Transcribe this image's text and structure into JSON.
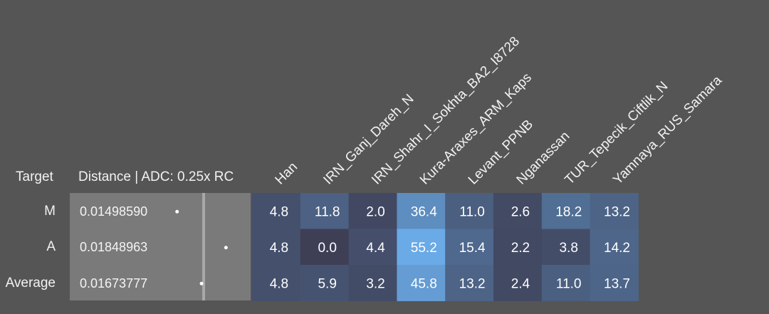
{
  "header": {
    "target_label": "Target",
    "distance_label": "Distance | ADC: 0.25x RC"
  },
  "colors": {
    "background": "#555555",
    "distance_bg": "#7a7a7a",
    "divider": "#a8a8a8",
    "dot": "#ffffff"
  },
  "rows": [
    {
      "name": "M",
      "distance": "0.01498590",
      "distance_value": 0.0149859
    },
    {
      "name": "A",
      "distance": "0.01848963",
      "distance_value": 0.01848963
    },
    {
      "name": "Average",
      "distance": "0.01673777",
      "distance_value": 0.01673777
    }
  ],
  "chart_data": {
    "type": "heatmap",
    "columns": [
      "Han",
      "IRN_Ganj_Dareh_N",
      "IRN_Shahr_I_Sokhta_BA2_I8728",
      "Kura-Araxes_ARM_Kaps",
      "Levant_PPNB",
      "Nganassan",
      "TUR_Tepecik_Ciftlik_N",
      "Yamnaya_RUS_Samara"
    ],
    "rows": [
      "M",
      "A",
      "Average"
    ],
    "values": [
      [
        4.8,
        11.8,
        2.0,
        36.4,
        11.0,
        2.6,
        18.2,
        13.2
      ],
      [
        4.8,
        0.0,
        4.4,
        55.2,
        15.4,
        2.2,
        3.8,
        14.2
      ],
      [
        4.8,
        5.9,
        3.2,
        45.8,
        13.2,
        2.4,
        11.0,
        13.7
      ]
    ],
    "labels": [
      [
        "4.8",
        "11.8",
        "2.0",
        "36.4",
        "11.0",
        "2.6",
        "18.2",
        "13.2"
      ],
      [
        "4.8",
        "0.0",
        "4.4",
        "55.2",
        "15.4",
        "2.2",
        "3.8",
        "14.2"
      ],
      [
        "4.8",
        "5.9",
        "3.2",
        "45.8",
        "13.2",
        "2.4",
        "11.0",
        "13.7"
      ]
    ],
    "color_low": "#3e3f55",
    "color_high": "#6aaae6",
    "vmax": 55.2
  }
}
